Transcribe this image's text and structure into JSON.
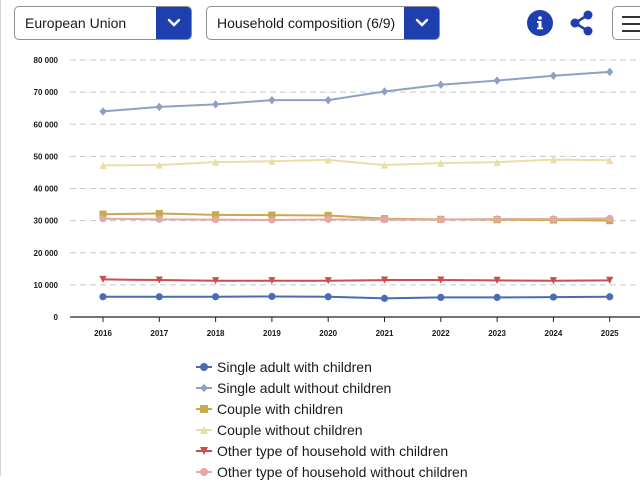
{
  "filters": {
    "country": "European Union",
    "composition": "Household composition (6/9)"
  },
  "icons": {
    "info": "info-icon",
    "share": "share-icon",
    "menu": "hamburger-menu-icon",
    "chevron": "chevron-down-icon"
  },
  "colors": {
    "accent": "#1f3faf"
  },
  "chart_data": {
    "type": "line",
    "x": [
      "2016",
      "2017",
      "2018",
      "2019",
      "2020",
      "2021",
      "2022",
      "2023",
      "2024",
      "2025"
    ],
    "ylim": [
      0,
      80000
    ],
    "yticks": [
      "0",
      "10 000",
      "20 000",
      "30 000",
      "40 000",
      "50 000",
      "60 000",
      "70 000",
      "80 000"
    ],
    "ytick_values": [
      0,
      10000,
      20000,
      30000,
      40000,
      50000,
      60000,
      70000,
      80000
    ],
    "grid": true,
    "legend_position": "bottom",
    "series": [
      {
        "name": "Single adult with children",
        "color": "#4a6bb5",
        "marker": "circle",
        "values": [
          6300,
          6300,
          6300,
          6400,
          6300,
          5800,
          6100,
          6100,
          6200,
          6300
        ]
      },
      {
        "name": "Single adult without children",
        "color": "#8ca1c4",
        "marker": "diamond",
        "values": [
          64000,
          65400,
          66200,
          67500,
          67500,
          70200,
          72300,
          73600,
          75100,
          76300
        ]
      },
      {
        "name": "Couple with children",
        "color": "#c9a94f",
        "marker": "square",
        "values": [
          32000,
          32200,
          31800,
          31700,
          31600,
          30600,
          30400,
          30300,
          30200,
          30000
        ]
      },
      {
        "name": "Couple without children",
        "color": "#ecdca7",
        "marker": "triangle",
        "values": [
          47200,
          47300,
          48200,
          48500,
          48900,
          47300,
          47900,
          48200,
          49000,
          48800
        ]
      },
      {
        "name": "Other type of household with children",
        "color": "#c94f4f",
        "marker": "triangle-down",
        "values": [
          11700,
          11500,
          11300,
          11300,
          11300,
          11500,
          11500,
          11400,
          11300,
          11400
        ]
      },
      {
        "name": "Other type of household without children",
        "color": "#e3a9a6",
        "marker": "circle",
        "values": [
          30600,
          30400,
          30300,
          30200,
          30400,
          30300,
          30300,
          30500,
          30500,
          30700
        ]
      }
    ]
  }
}
